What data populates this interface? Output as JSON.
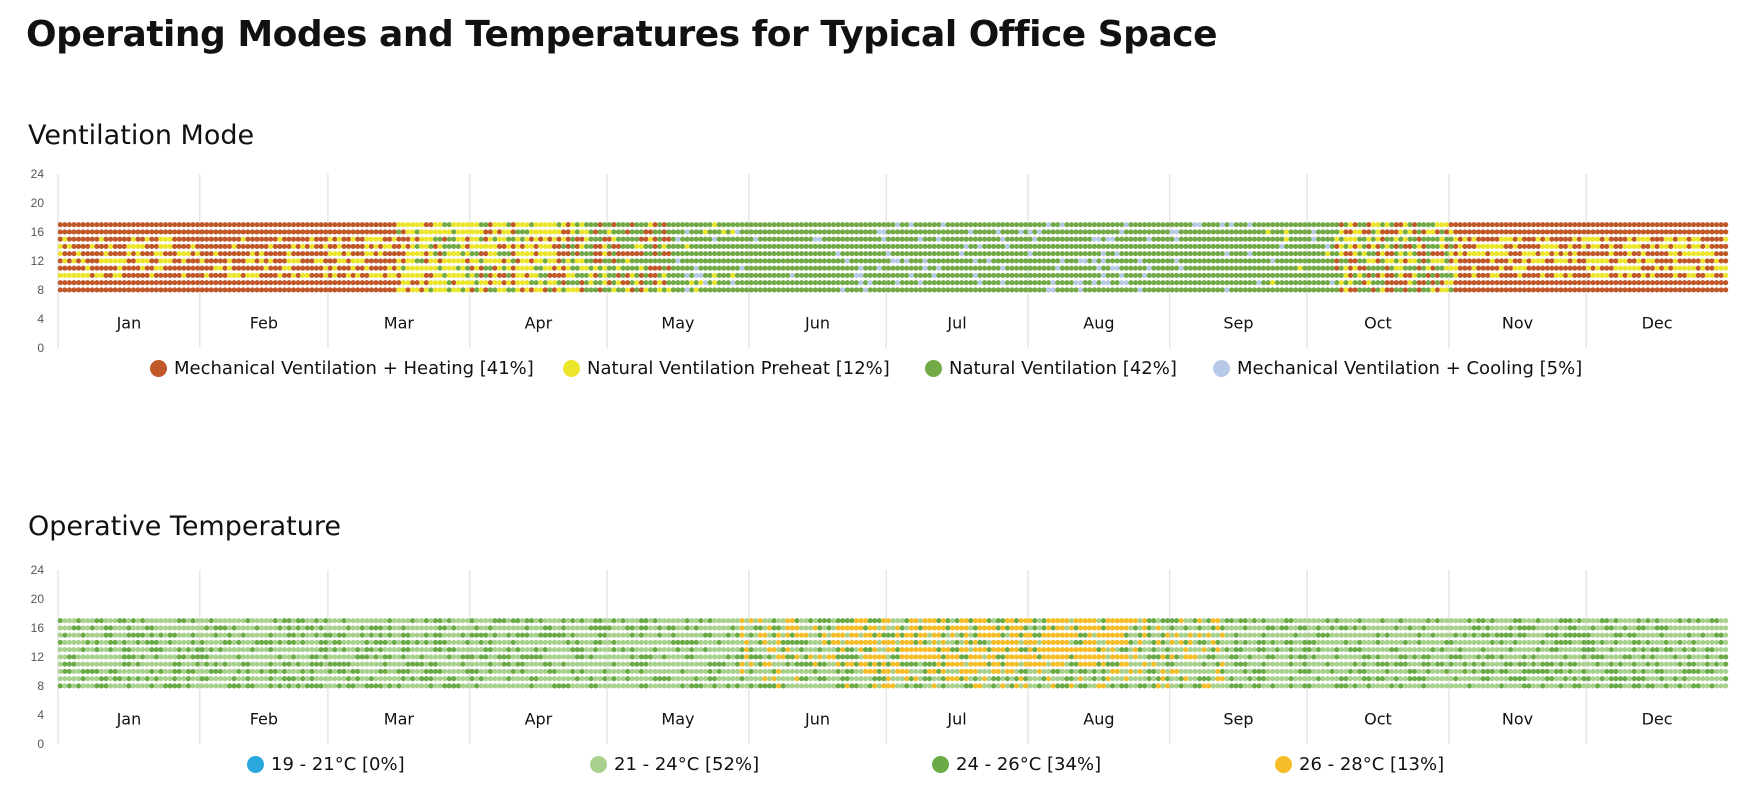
{
  "page": {
    "title": "Operating Modes and Temperatures for Typical Office Space"
  },
  "chart_data": [
    {
      "type": "heatmap",
      "title": "Ventilation Mode",
      "months": [
        "Jan",
        "Feb",
        "Mar",
        "Apr",
        "May",
        "Jun",
        "Jul",
        "Aug",
        "Sep",
        "Oct",
        "Nov",
        "Dec"
      ],
      "x": {
        "unit": "day of year",
        "range": [
          1,
          365
        ]
      },
      "y": {
        "unit": "hour of day",
        "range": [
          0,
          24
        ],
        "ticks": [
          0,
          4,
          8,
          12,
          16,
          20,
          24
        ],
        "occupied_hours": [
          8,
          18
        ]
      },
      "grid": "vertical month lines",
      "legend_placement": "bottom",
      "categories": [
        {
          "label": "Mechanical Ventilation + Heating [41%]",
          "color": "#c0582a"
        },
        {
          "label": "Natural Ventilation Preheat [12%]",
          "color": "#ebe52c"
        },
        {
          "label": "Natural Ventilation [42%]",
          "color": "#72aa48"
        },
        {
          "label": "Mechanical Ventilation + Cooling [5%]",
          "color": "#b7c9e6"
        }
      ]
    },
    {
      "type": "heatmap",
      "title": "Operative Temperature",
      "months": [
        "Jan",
        "Feb",
        "Mar",
        "Apr",
        "May",
        "Jun",
        "Jul",
        "Aug",
        "Sep",
        "Oct",
        "Nov",
        "Dec"
      ],
      "x": {
        "unit": "day of year",
        "range": [
          1,
          365
        ]
      },
      "y": {
        "unit": "hour of day",
        "range": [
          0,
          24
        ],
        "ticks": [
          0,
          4,
          8,
          12,
          16,
          20,
          24
        ],
        "occupied_hours": [
          8,
          18
        ]
      },
      "grid": "vertical month lines",
      "legend_placement": "bottom",
      "categories": [
        {
          "label": "19 - 21°C [0%]",
          "color": "#2aa7dd"
        },
        {
          "label": "21 - 24°C [52%]",
          "color": "#a9d18e"
        },
        {
          "label": "24 - 26°C [34%]",
          "color": "#6aab47"
        },
        {
          "label": "26 - 28°C [13%]",
          "color": "#f5bd27"
        }
      ]
    }
  ]
}
